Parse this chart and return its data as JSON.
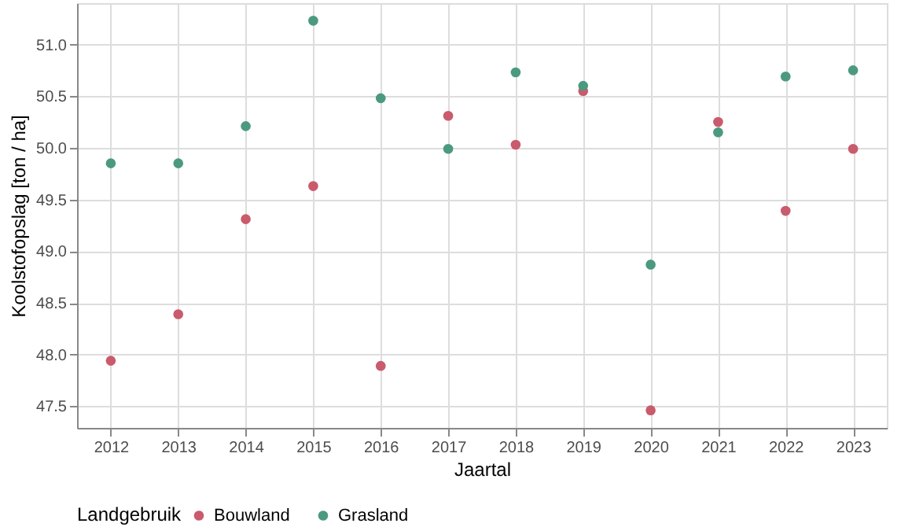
{
  "chart_data": {
    "type": "scatter",
    "xlabel": "Jaartal",
    "ylabel": "Koolstofopslag [ton / ha]",
    "legend_title": "Landgebruik",
    "categories": [
      "2012",
      "2013",
      "2014",
      "2015",
      "2016",
      "2017",
      "2018",
      "2019",
      "2020",
      "2021",
      "2022",
      "2023"
    ],
    "series": [
      {
        "name": "Bouwland",
        "color": "#c95b6c",
        "values": [
          47.94,
          48.39,
          49.31,
          49.63,
          47.89,
          50.31,
          50.03,
          50.55,
          47.46,
          50.25,
          49.39,
          49.99
        ]
      },
      {
        "name": "Grasland",
        "color": "#4b9a7f",
        "values": [
          49.85,
          49.85,
          50.21,
          51.23,
          50.48,
          49.99,
          50.73,
          50.6,
          48.87,
          50.15,
          50.69,
          50.75
        ]
      }
    ],
    "ylim": [
      47.29,
      51.4
    ],
    "yticks": [
      47.5,
      {
        "value": 48,
        "label": "48.0"
      },
      48.5,
      {
        "value": 49,
        "label": "49.0"
      },
      49.5,
      {
        "value": 50,
        "label": "50.0"
      },
      50.5,
      {
        "value": 51,
        "label": "51.0"
      }
    ],
    "grid": true,
    "legend": "bottom",
    "marker": "circle"
  }
}
